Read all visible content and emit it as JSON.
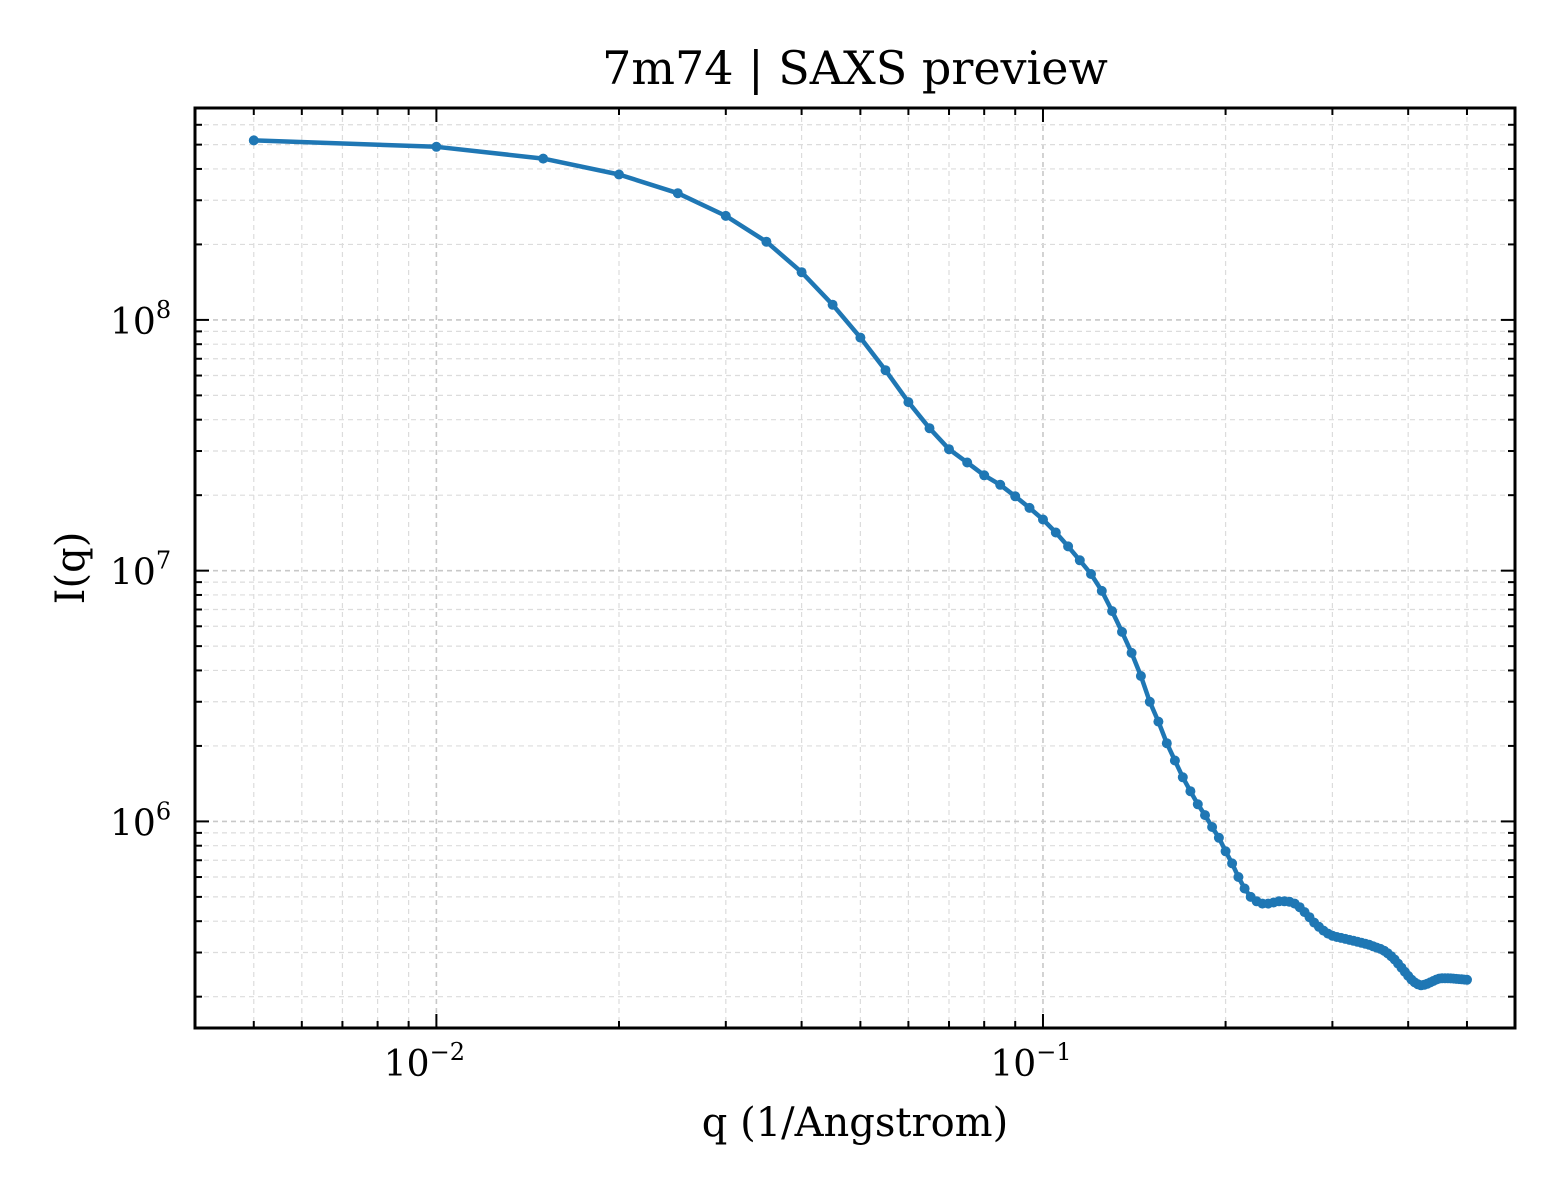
{
  "chart_data": {
    "type": "line",
    "title": "7m74 | SAXS preview",
    "xlabel": "q (1/Angstrom)",
    "ylabel": "I(q)",
    "xscale": "log",
    "yscale": "log",
    "xlim": [
      0.004,
      0.6
    ],
    "ylim": [
      150000,
      700000000
    ],
    "grid": true,
    "legend": "none",
    "x_ticks": [
      {
        "value": 0.01,
        "base": "10",
        "exp": "−2"
      },
      {
        "value": 0.1,
        "base": "10",
        "exp": "−1"
      }
    ],
    "y_ticks": [
      {
        "value": 1000000,
        "base": "10",
        "exp": "6"
      },
      {
        "value": 10000000,
        "base": "10",
        "exp": "7"
      },
      {
        "value": 100000000,
        "base": "10",
        "exp": "8"
      }
    ],
    "series": [
      {
        "color": "#1f77b4",
        "x": [
          0.005,
          0.01,
          0.015,
          0.02,
          0.025,
          0.03,
          0.035,
          0.04,
          0.045,
          0.05,
          0.055,
          0.06,
          0.065,
          0.07,
          0.075,
          0.08,
          0.085,
          0.09,
          0.095,
          0.1,
          0.105,
          0.11,
          0.115,
          0.12,
          0.125,
          0.13,
          0.135,
          0.14,
          0.145,
          0.15,
          0.155,
          0.16,
          0.165,
          0.17,
          0.175,
          0.18,
          0.185,
          0.19,
          0.195,
          0.2,
          0.205,
          0.21,
          0.215,
          0.22,
          0.225,
          0.23,
          0.235,
          0.24,
          0.245,
          0.25,
          0.255,
          0.26,
          0.265,
          0.27,
          0.275,
          0.28,
          0.285,
          0.29,
          0.295,
          0.3,
          0.305,
          0.31,
          0.315,
          0.32,
          0.325,
          0.33,
          0.335,
          0.34,
          0.345,
          0.35,
          0.355,
          0.36,
          0.365,
          0.37,
          0.375,
          0.38,
          0.385,
          0.39,
          0.395,
          0.4,
          0.405,
          0.41,
          0.415,
          0.42,
          0.425,
          0.43,
          0.435,
          0.44,
          0.445,
          0.45,
          0.455,
          0.46,
          0.465,
          0.47,
          0.475,
          0.48,
          0.485,
          0.49,
          0.495,
          0.5
        ],
        "y": [
          520000000,
          490000000,
          440000000,
          380000000,
          320000000,
          260000000,
          205000000,
          155000000,
          115000000,
          85000000,
          63000000,
          47000000,
          37000000,
          30500000,
          27000000,
          24000000,
          22000000,
          19800000,
          17800000,
          16000000,
          14200000,
          12500000,
          11000000,
          9700000,
          8300000,
          6900000,
          5700000,
          4700000,
          3800000,
          3000000,
          2500000,
          2050000,
          1750000,
          1500000,
          1320000,
          1170000,
          1060000,
          950000,
          860000,
          760000,
          680000,
          600000,
          540000,
          500000,
          480000,
          470000,
          470000,
          475000,
          480000,
          480000,
          478000,
          470000,
          455000,
          435000,
          415000,
          395000,
          380000,
          367000,
          357000,
          350000,
          346000,
          343000,
          340000,
          337000,
          334000,
          331000,
          328000,
          325000,
          322000,
          318000,
          314000,
          310000,
          305000,
          298000,
          290000,
          281000,
          271000,
          261000,
          251000,
          242000,
          234000,
          228000,
          224000,
          222000,
          223000,
          225000,
          228000,
          231000,
          234000,
          236000,
          237000,
          237000,
          237000,
          236500,
          236000,
          235500,
          235000,
          234500,
          234000,
          233500
        ]
      }
    ]
  }
}
